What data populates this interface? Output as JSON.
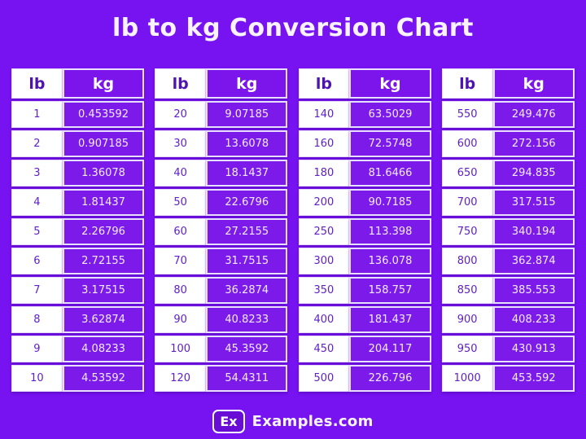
{
  "title": "lb to kg Conversion Chart",
  "colors": {
    "bg": "#7712F1",
    "cell_purple": "#7C1BE9",
    "header_purple": "#7C15EB",
    "border_light": "#E9DEFB",
    "lb_text": "#5E21C9",
    "lb_header_text": "#4E14B0",
    "kg_text": "#F3EBFF",
    "title_text": "#F8F3FF",
    "badge_bg": "#690DD6"
  },
  "chart_data": {
    "type": "table",
    "title": "lb to kg Conversion Chart",
    "columns": [
      "lb",
      "kg"
    ],
    "tables": [
      {
        "rows": [
          [
            "1",
            "0.453592"
          ],
          [
            "2",
            "0.907185"
          ],
          [
            "3",
            "1.36078"
          ],
          [
            "4",
            "1.81437"
          ],
          [
            "5",
            "2.26796"
          ],
          [
            "6",
            "2.72155"
          ],
          [
            "7",
            "3.17515"
          ],
          [
            "8",
            "3.62874"
          ],
          [
            "9",
            "4.08233"
          ],
          [
            "10",
            "4.53592"
          ]
        ]
      },
      {
        "rows": [
          [
            "20",
            "9.07185"
          ],
          [
            "30",
            "13.6078"
          ],
          [
            "40",
            "18.1437"
          ],
          [
            "50",
            "22.6796"
          ],
          [
            "60",
            "27.2155"
          ],
          [
            "70",
            "31.7515"
          ],
          [
            "80",
            "36.2874"
          ],
          [
            "90",
            "40.8233"
          ],
          [
            "100",
            "45.3592"
          ],
          [
            "120",
            "54.4311"
          ]
        ]
      },
      {
        "rows": [
          [
            "140",
            "63.5029"
          ],
          [
            "160",
            "72.5748"
          ],
          [
            "180",
            "81.6466"
          ],
          [
            "200",
            "90.7185"
          ],
          [
            "250",
            "113.398"
          ],
          [
            "300",
            "136.078"
          ],
          [
            "350",
            "158.757"
          ],
          [
            "400",
            "181.437"
          ],
          [
            "450",
            "204.117"
          ],
          [
            "500",
            "226.796"
          ]
        ]
      },
      {
        "rows": [
          [
            "550",
            "249.476"
          ],
          [
            "600",
            "272.156"
          ],
          [
            "650",
            "294.835"
          ],
          [
            "700",
            "317.515"
          ],
          [
            "750",
            "340.194"
          ],
          [
            "800",
            "362.874"
          ],
          [
            "850",
            "385.553"
          ],
          [
            "900",
            "408.233"
          ],
          [
            "950",
            "430.913"
          ],
          [
            "1000",
            "453.592"
          ]
        ]
      }
    ]
  },
  "footer": {
    "logo": "Ex",
    "site": "Examples.com"
  }
}
